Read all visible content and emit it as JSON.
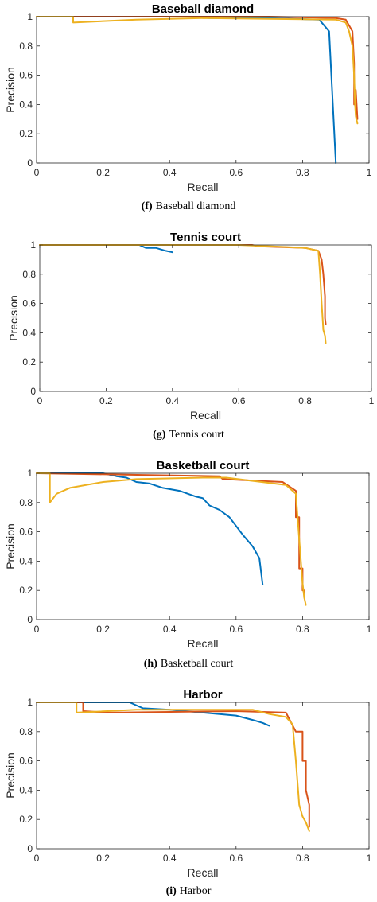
{
  "colors": {
    "blue": "#0072BD",
    "red": "#D95319",
    "yellow": "#EDB120"
  },
  "chart_data": [
    {
      "type": "line",
      "title": "Baseball diamond",
      "xlabel": "Recall",
      "ylabel": "Precision",
      "xlim": [
        0,
        1
      ],
      "ylim": [
        0,
        1
      ],
      "xticks": [
        "0",
        "0.2",
        "0.4",
        "0.6",
        "0.8",
        "1"
      ],
      "yticks": [
        "0",
        "0.2",
        "0.4",
        "0.6",
        "0.8",
        "1"
      ],
      "grid": false,
      "caption_letter": "(f)",
      "caption_text": "Baseball diamond",
      "series": [
        {
          "color": "blue",
          "x": [
            0,
            0.46,
            0.52,
            0.7,
            0.85,
            0.88,
            0.9
          ],
          "y": [
            1,
            1,
            0.99,
            0.99,
            0.98,
            0.9,
            0
          ]
        },
        {
          "color": "red",
          "x": [
            0,
            0.27,
            0.27,
            0.7,
            0.9,
            0.93,
            0.95,
            0.955,
            0.955,
            0.96,
            0.96,
            0.965
          ],
          "y": [
            1,
            1,
            1,
            1,
            0.99,
            0.98,
            0.9,
            0.68,
            0.4,
            0.4,
            0.5,
            0.3
          ]
        },
        {
          "color": "yellow",
          "x": [
            0,
            0.11,
            0.11,
            0.3,
            0.5,
            0.7,
            0.9,
            0.93,
            0.94,
            0.95,
            0.955,
            0.958,
            0.96,
            0.965
          ],
          "y": [
            1,
            1,
            0.96,
            0.98,
            0.99,
            0.985,
            0.98,
            0.96,
            0.9,
            0.8,
            0.6,
            0.4,
            0.32,
            0.27
          ]
        }
      ]
    },
    {
      "type": "line",
      "title": "Tennis court",
      "xlabel": "Recall",
      "ylabel": "Precision",
      "xlim": [
        0,
        1
      ],
      "ylim": [
        0,
        1
      ],
      "xticks": [
        "0",
        "0.2",
        "0.4",
        "0.6",
        "0.8",
        "1"
      ],
      "yticks": [
        "0",
        "0.2",
        "0.4",
        "0.6",
        "0.8",
        "1"
      ],
      "grid": false,
      "caption_letter": "(g)",
      "caption_text": "Tennis court",
      "series": [
        {
          "color": "blue",
          "x": [
            0,
            0.3,
            0.32,
            0.35,
            0.38,
            0.4
          ],
          "y": [
            1,
            1,
            0.98,
            0.98,
            0.96,
            0.95
          ]
        },
        {
          "color": "red",
          "x": [
            0,
            0.64,
            0.66,
            0.8,
            0.84,
            0.85,
            0.855,
            0.86,
            0.86,
            0.862
          ],
          "y": [
            1,
            1,
            0.99,
            0.98,
            0.96,
            0.9,
            0.8,
            0.65,
            0.5,
            0.46
          ]
        },
        {
          "color": "yellow",
          "x": [
            0,
            0.6,
            0.7,
            0.8,
            0.84,
            0.845,
            0.85,
            0.855,
            0.86,
            0.862
          ],
          "y": [
            1,
            1,
            0.99,
            0.98,
            0.96,
            0.8,
            0.6,
            0.42,
            0.38,
            0.33
          ]
        }
      ]
    },
    {
      "type": "line",
      "title": "Basketball court",
      "xlabel": "Recall",
      "ylabel": "Precision",
      "xlim": [
        0,
        1
      ],
      "ylim": [
        0,
        1
      ],
      "xticks": [
        "0",
        "0.2",
        "0.4",
        "0.6",
        "0.8",
        "1"
      ],
      "yticks": [
        "0",
        "0.2",
        "0.4",
        "0.6",
        "0.8",
        "1"
      ],
      "grid": false,
      "caption_letter": "(h)",
      "caption_text": "Basketball court",
      "series": [
        {
          "color": "blue",
          "x": [
            0,
            0.2,
            0.24,
            0.27,
            0.3,
            0.34,
            0.38,
            0.43,
            0.48,
            0.5,
            0.52,
            0.55,
            0.58,
            0.6,
            0.62,
            0.65,
            0.67,
            0.68
          ],
          "y": [
            1,
            1,
            0.98,
            0.97,
            0.94,
            0.93,
            0.9,
            0.88,
            0.84,
            0.83,
            0.78,
            0.75,
            0.7,
            0.64,
            0.58,
            0.5,
            0.42,
            0.24
          ]
        },
        {
          "color": "red",
          "x": [
            0,
            0.55,
            0.56,
            0.74,
            0.78,
            0.78,
            0.79,
            0.79,
            0.8,
            0.8,
            0.805,
            0.805
          ],
          "y": [
            1,
            0.98,
            0.96,
            0.94,
            0.88,
            0.7,
            0.7,
            0.35,
            0.35,
            0.2,
            0.2,
            0.15
          ]
        },
        {
          "color": "yellow",
          "x": [
            0,
            0.04,
            0.04,
            0.06,
            0.1,
            0.2,
            0.3,
            0.5,
            0.57,
            0.75,
            0.78,
            0.79,
            0.8,
            0.805,
            0.81
          ],
          "y": [
            1,
            1,
            0.8,
            0.86,
            0.9,
            0.94,
            0.96,
            0.97,
            0.97,
            0.92,
            0.86,
            0.55,
            0.25,
            0.15,
            0.1
          ]
        }
      ]
    },
    {
      "type": "line",
      "title": "Harbor",
      "xlabel": "Recall",
      "ylabel": "Precision",
      "xlim": [
        0,
        1
      ],
      "ylim": [
        0,
        1
      ],
      "xticks": [
        "0",
        "0.2",
        "0.4",
        "0.6",
        "0.8",
        "1"
      ],
      "yticks": [
        "0",
        "0.2",
        "0.4",
        "0.6",
        "0.8",
        "1"
      ],
      "grid": false,
      "caption_letter": "(i)",
      "caption_text": "Harbor",
      "series": [
        {
          "color": "blue",
          "x": [
            0,
            0.28,
            0.32,
            0.4,
            0.5,
            0.55,
            0.6,
            0.65,
            0.68,
            0.7
          ],
          "y": [
            1,
            1,
            0.96,
            0.95,
            0.93,
            0.92,
            0.91,
            0.88,
            0.86,
            0.84
          ]
        },
        {
          "color": "red",
          "x": [
            0,
            0.14,
            0.14,
            0.22,
            0.23,
            0.6,
            0.75,
            0.78,
            0.8,
            0.8,
            0.81,
            0.81,
            0.82,
            0.82
          ],
          "y": [
            1,
            1,
            0.94,
            0.93,
            0.93,
            0.94,
            0.93,
            0.8,
            0.8,
            0.6,
            0.6,
            0.4,
            0.3,
            0.15
          ]
        },
        {
          "color": "yellow",
          "x": [
            0,
            0.12,
            0.12,
            0.3,
            0.5,
            0.65,
            0.7,
            0.75,
            0.77,
            0.78,
            0.79,
            0.8,
            0.81,
            0.82
          ],
          "y": [
            1,
            1,
            0.93,
            0.95,
            0.95,
            0.95,
            0.92,
            0.9,
            0.85,
            0.6,
            0.3,
            0.22,
            0.18,
            0.12
          ]
        }
      ]
    }
  ]
}
